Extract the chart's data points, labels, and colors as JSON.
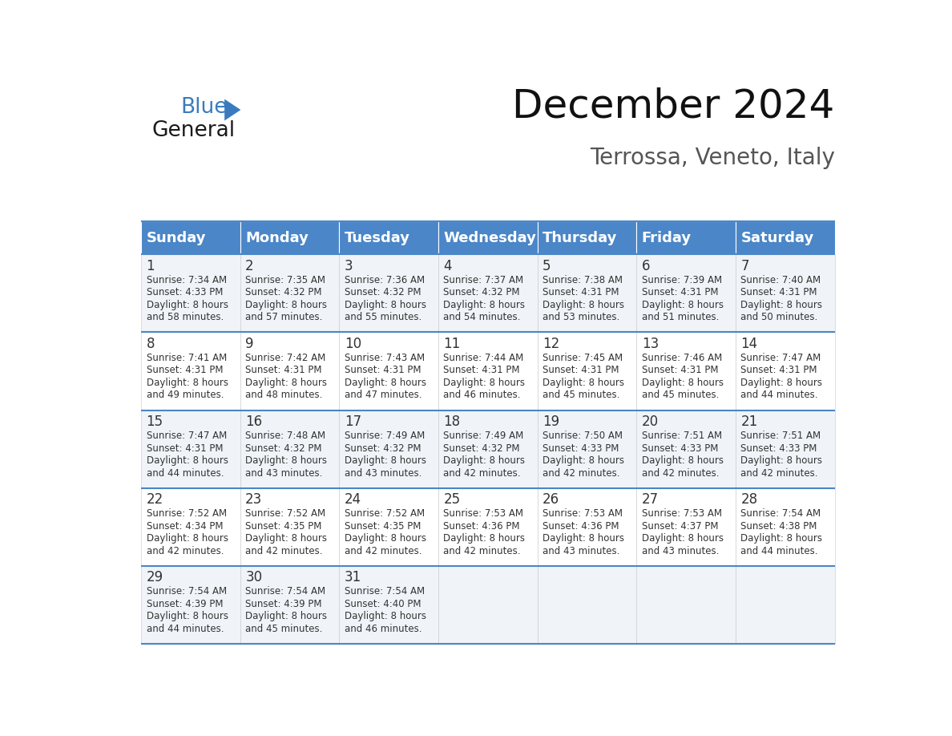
{
  "title": "December 2024",
  "subtitle": "Terrossa, Veneto, Italy",
  "header_color": "#4A86C8",
  "header_text_color": "#FFFFFF",
  "days_of_week": [
    "Sunday",
    "Monday",
    "Tuesday",
    "Wednesday",
    "Thursday",
    "Friday",
    "Saturday"
  ],
  "bg_color": "#FFFFFF",
  "cell_bg_even": "#f0f4f8",
  "cell_bg_odd": "#FFFFFF",
  "border_color": "#4A86C8",
  "text_color": "#333333",
  "calendar_data": [
    [
      {
        "day": "1",
        "sunrise": "7:34 AM",
        "sunset": "4:33 PM",
        "daylight_l1": "8 hours",
        "daylight_l2": "and 58 minutes."
      },
      {
        "day": "2",
        "sunrise": "7:35 AM",
        "sunset": "4:32 PM",
        "daylight_l1": "8 hours",
        "daylight_l2": "and 57 minutes."
      },
      {
        "day": "3",
        "sunrise": "7:36 AM",
        "sunset": "4:32 PM",
        "daylight_l1": "8 hours",
        "daylight_l2": "and 55 minutes."
      },
      {
        "day": "4",
        "sunrise": "7:37 AM",
        "sunset": "4:32 PM",
        "daylight_l1": "8 hours",
        "daylight_l2": "and 54 minutes."
      },
      {
        "day": "5",
        "sunrise": "7:38 AM",
        "sunset": "4:31 PM",
        "daylight_l1": "8 hours",
        "daylight_l2": "and 53 minutes."
      },
      {
        "day": "6",
        "sunrise": "7:39 AM",
        "sunset": "4:31 PM",
        "daylight_l1": "8 hours",
        "daylight_l2": "and 51 minutes."
      },
      {
        "day": "7",
        "sunrise": "7:40 AM",
        "sunset": "4:31 PM",
        "daylight_l1": "8 hours",
        "daylight_l2": "and 50 minutes."
      }
    ],
    [
      {
        "day": "8",
        "sunrise": "7:41 AM",
        "sunset": "4:31 PM",
        "daylight_l1": "8 hours",
        "daylight_l2": "and 49 minutes."
      },
      {
        "day": "9",
        "sunrise": "7:42 AM",
        "sunset": "4:31 PM",
        "daylight_l1": "8 hours",
        "daylight_l2": "and 48 minutes."
      },
      {
        "day": "10",
        "sunrise": "7:43 AM",
        "sunset": "4:31 PM",
        "daylight_l1": "8 hours",
        "daylight_l2": "and 47 minutes."
      },
      {
        "day": "11",
        "sunrise": "7:44 AM",
        "sunset": "4:31 PM",
        "daylight_l1": "8 hours",
        "daylight_l2": "and 46 minutes."
      },
      {
        "day": "12",
        "sunrise": "7:45 AM",
        "sunset": "4:31 PM",
        "daylight_l1": "8 hours",
        "daylight_l2": "and 45 minutes."
      },
      {
        "day": "13",
        "sunrise": "7:46 AM",
        "sunset": "4:31 PM",
        "daylight_l1": "8 hours",
        "daylight_l2": "and 45 minutes."
      },
      {
        "day": "14",
        "sunrise": "7:47 AM",
        "sunset": "4:31 PM",
        "daylight_l1": "8 hours",
        "daylight_l2": "and 44 minutes."
      }
    ],
    [
      {
        "day": "15",
        "sunrise": "7:47 AM",
        "sunset": "4:31 PM",
        "daylight_l1": "8 hours",
        "daylight_l2": "and 44 minutes."
      },
      {
        "day": "16",
        "sunrise": "7:48 AM",
        "sunset": "4:32 PM",
        "daylight_l1": "8 hours",
        "daylight_l2": "and 43 minutes."
      },
      {
        "day": "17",
        "sunrise": "7:49 AM",
        "sunset": "4:32 PM",
        "daylight_l1": "8 hours",
        "daylight_l2": "and 43 minutes."
      },
      {
        "day": "18",
        "sunrise": "7:49 AM",
        "sunset": "4:32 PM",
        "daylight_l1": "8 hours",
        "daylight_l2": "and 42 minutes."
      },
      {
        "day": "19",
        "sunrise": "7:50 AM",
        "sunset": "4:33 PM",
        "daylight_l1": "8 hours",
        "daylight_l2": "and 42 minutes."
      },
      {
        "day": "20",
        "sunrise": "7:51 AM",
        "sunset": "4:33 PM",
        "daylight_l1": "8 hours",
        "daylight_l2": "and 42 minutes."
      },
      {
        "day": "21",
        "sunrise": "7:51 AM",
        "sunset": "4:33 PM",
        "daylight_l1": "8 hours",
        "daylight_l2": "and 42 minutes."
      }
    ],
    [
      {
        "day": "22",
        "sunrise": "7:52 AM",
        "sunset": "4:34 PM",
        "daylight_l1": "8 hours",
        "daylight_l2": "and 42 minutes."
      },
      {
        "day": "23",
        "sunrise": "7:52 AM",
        "sunset": "4:35 PM",
        "daylight_l1": "8 hours",
        "daylight_l2": "and 42 minutes."
      },
      {
        "day": "24",
        "sunrise": "7:52 AM",
        "sunset": "4:35 PM",
        "daylight_l1": "8 hours",
        "daylight_l2": "and 42 minutes."
      },
      {
        "day": "25",
        "sunrise": "7:53 AM",
        "sunset": "4:36 PM",
        "daylight_l1": "8 hours",
        "daylight_l2": "and 42 minutes."
      },
      {
        "day": "26",
        "sunrise": "7:53 AM",
        "sunset": "4:36 PM",
        "daylight_l1": "8 hours",
        "daylight_l2": "and 43 minutes."
      },
      {
        "day": "27",
        "sunrise": "7:53 AM",
        "sunset": "4:37 PM",
        "daylight_l1": "8 hours",
        "daylight_l2": "and 43 minutes."
      },
      {
        "day": "28",
        "sunrise": "7:54 AM",
        "sunset": "4:38 PM",
        "daylight_l1": "8 hours",
        "daylight_l2": "and 44 minutes."
      }
    ],
    [
      {
        "day": "29",
        "sunrise": "7:54 AM",
        "sunset": "4:39 PM",
        "daylight_l1": "8 hours",
        "daylight_l2": "and 44 minutes."
      },
      {
        "day": "30",
        "sunrise": "7:54 AM",
        "sunset": "4:39 PM",
        "daylight_l1": "8 hours",
        "daylight_l2": "and 45 minutes."
      },
      {
        "day": "31",
        "sunrise": "7:54 AM",
        "sunset": "4:40 PM",
        "daylight_l1": "8 hours",
        "daylight_l2": "and 46 minutes."
      },
      null,
      null,
      null,
      null
    ]
  ],
  "logo_text1": "General",
  "logo_text2": "Blue",
  "logo_color1": "#1a1a1a",
  "logo_color2": "#3a7bbf",
  "logo_triangle_color": "#3a7bbf",
  "title_fontsize": 36,
  "subtitle_fontsize": 20,
  "dow_fontsize": 13,
  "day_num_fontsize": 12,
  "cell_text_fontsize": 8.5
}
